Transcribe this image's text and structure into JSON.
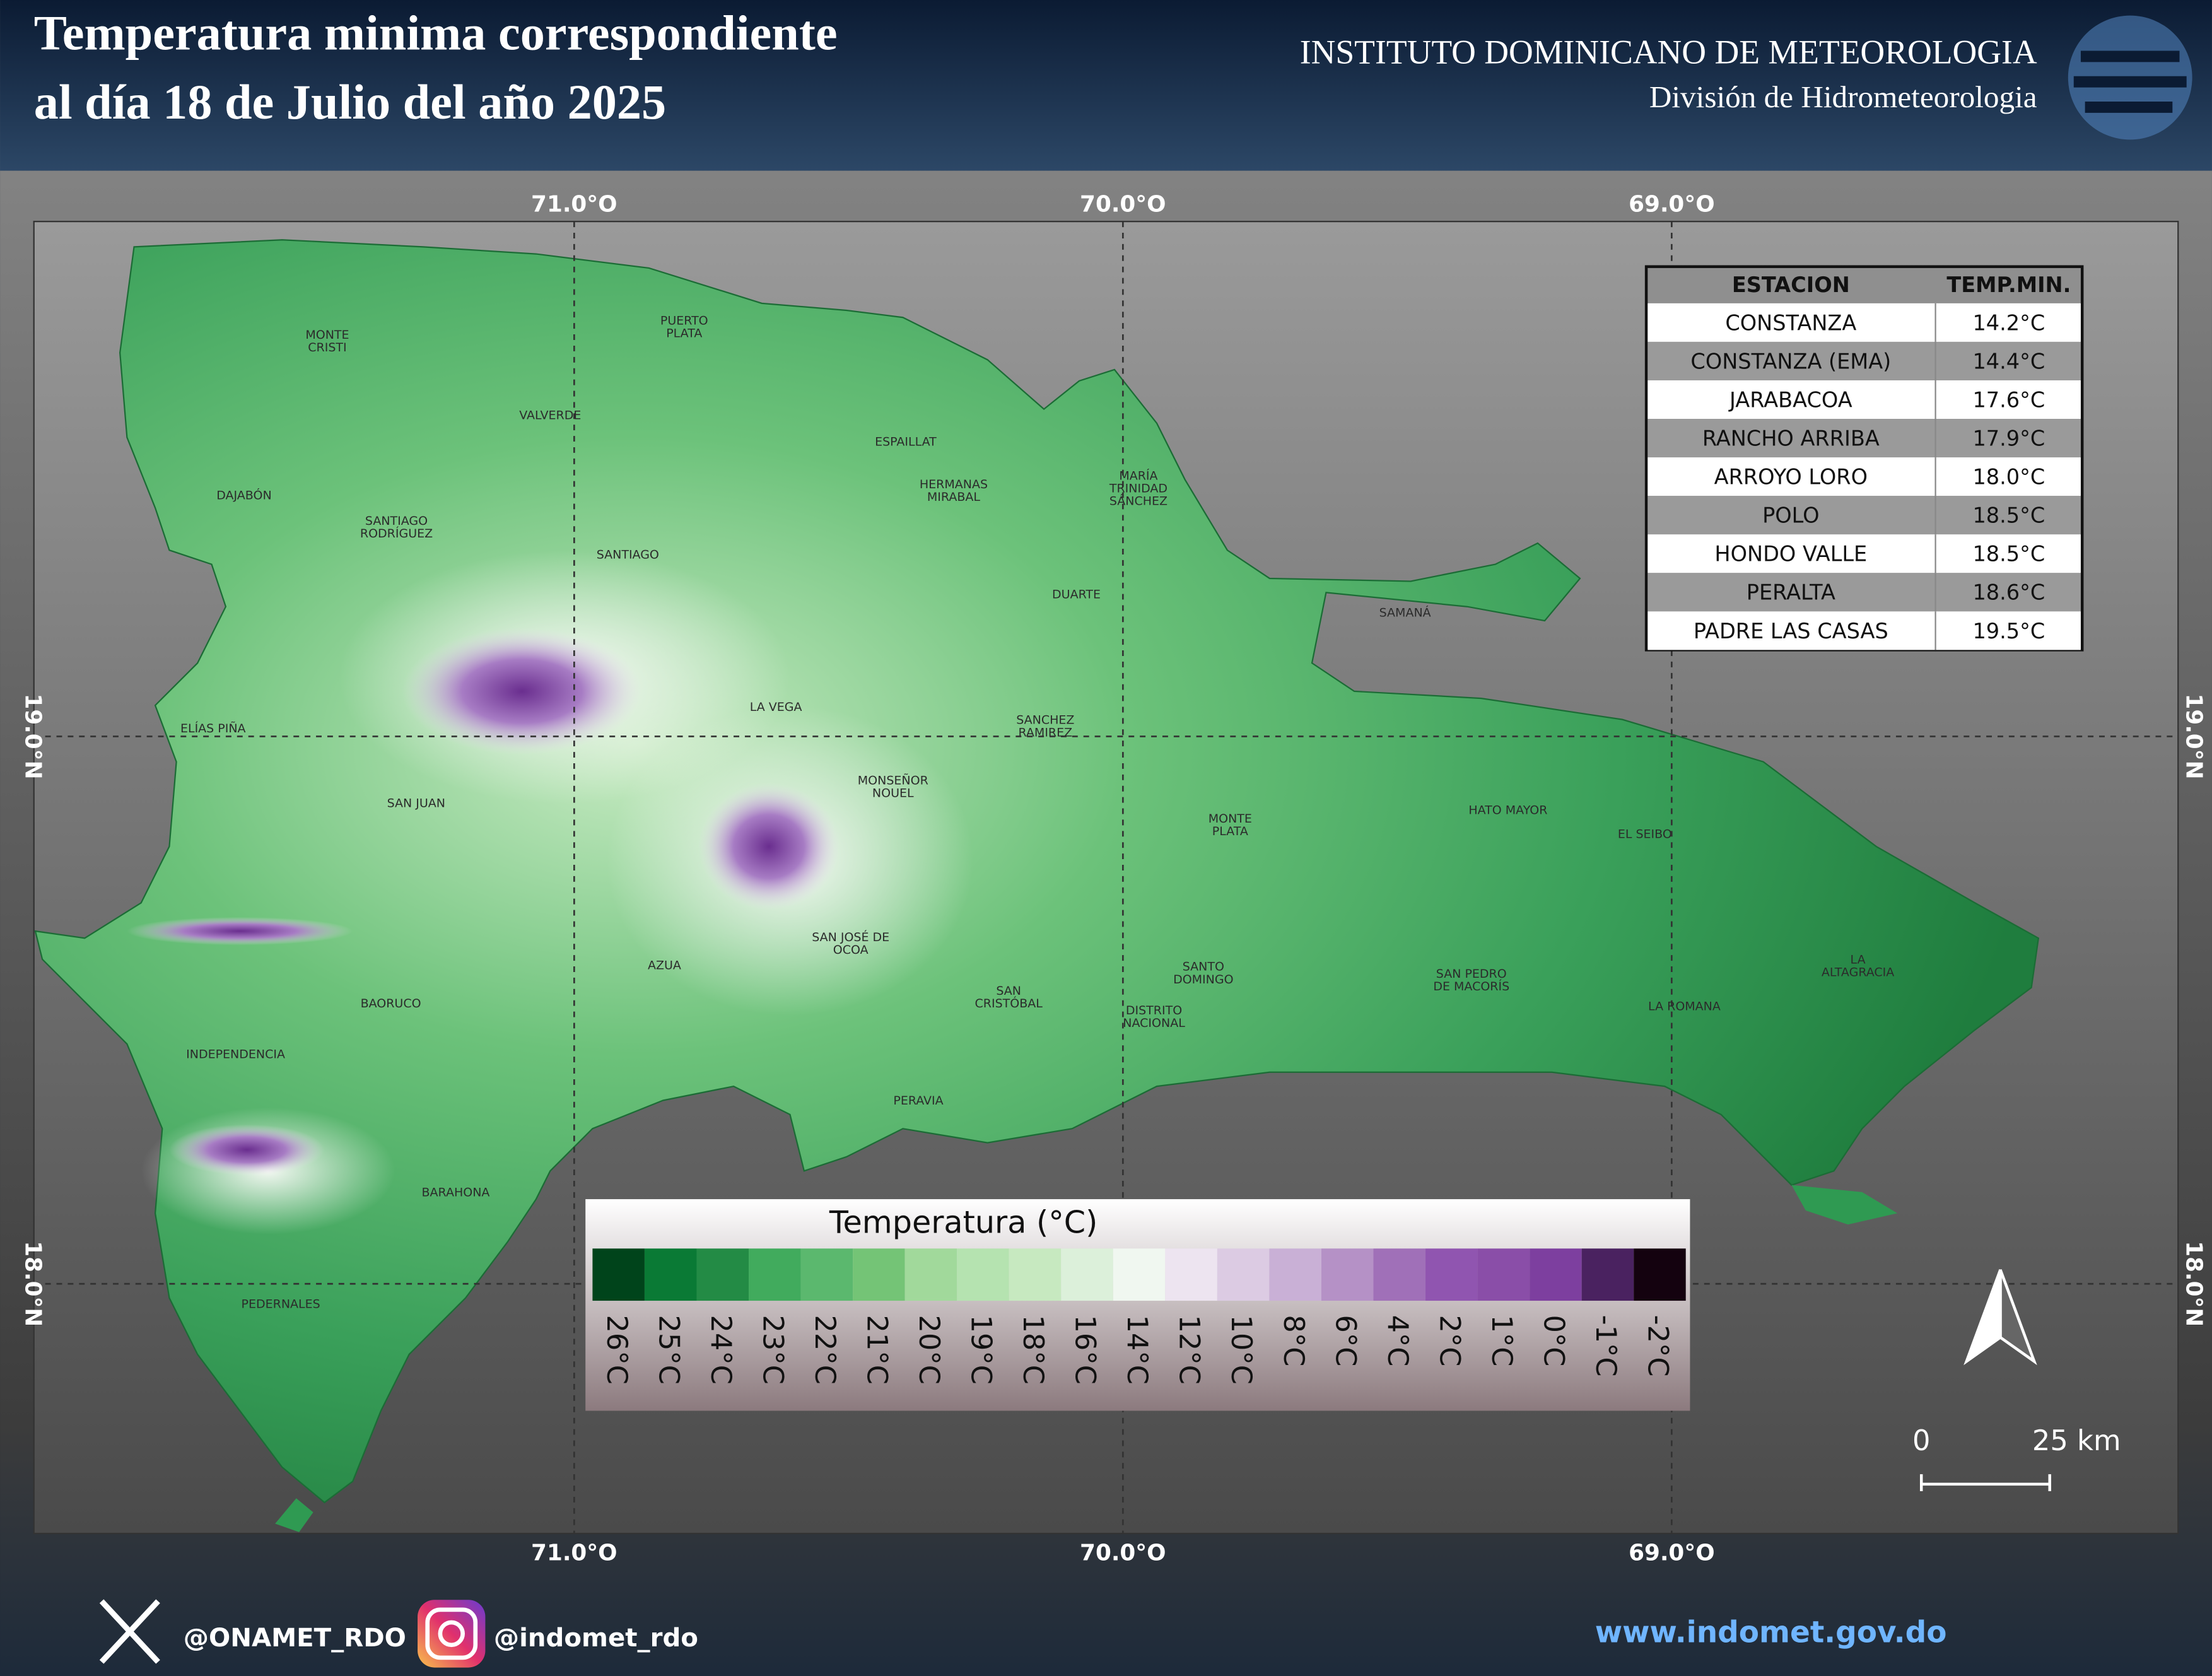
{
  "header": {
    "title_lines": [
      "Temperatura minima correspondiente",
      "al día 18 de Julio del año 2025"
    ],
    "institute": "INSTITUTO DOMINICANO DE METEOROLOGIA",
    "division": "División de Hidrometeorologia"
  },
  "map": {
    "lon_labels": [
      "71.0°O",
      "70.0°O",
      "69.0°O"
    ],
    "lat_labels": [
      "19.0°N",
      "18.0°N"
    ],
    "provinces": [
      {
        "lines": [
          "MONTE",
          "CRISTI"
        ]
      },
      {
        "lines": [
          "PUERTO",
          "PLATA"
        ]
      },
      {
        "lines": [
          "VALVERDE"
        ]
      },
      {
        "lines": [
          "ESPAILLAT"
        ]
      },
      {
        "lines": [
          "HERMANAS",
          "MIRABAL"
        ]
      },
      {
        "lines": [
          "MARÍA",
          "TRINIDAD",
          "SÁNCHEZ"
        ]
      },
      {
        "lines": [
          "DAJABÓN"
        ]
      },
      {
        "lines": [
          "SANTIAGO",
          "RODRÍGUEZ"
        ]
      },
      {
        "lines": [
          "SANTIAGO"
        ]
      },
      {
        "lines": [
          "DUARTE"
        ]
      },
      {
        "lines": [
          "SAMANÁ"
        ]
      },
      {
        "lines": [
          "LA VEGA"
        ]
      },
      {
        "lines": [
          "SANCHEZ",
          "RAMIREZ"
        ]
      },
      {
        "lines": [
          "ELÍAS PIÑA"
        ]
      },
      {
        "lines": [
          "MONSEÑOR",
          "NOUEL"
        ]
      },
      {
        "lines": [
          "SAN JUAN"
        ]
      },
      {
        "lines": [
          "HATO MAYOR"
        ]
      },
      {
        "lines": [
          "MONTE",
          "PLATA"
        ]
      },
      {
        "lines": [
          "EL SEIBO"
        ]
      },
      {
        "lines": [
          "SAN JOSÉ DE",
          "OCOA"
        ]
      },
      {
        "lines": [
          "AZUA"
        ]
      },
      {
        "lines": [
          "SANTO",
          "DOMINGO"
        ]
      },
      {
        "lines": [
          "SAN PEDRO",
          "DE MACORÍS"
        ]
      },
      {
        "lines": [
          "LA",
          "ALTAGRACIA"
        ]
      },
      {
        "lines": [
          "BAORUCO"
        ]
      },
      {
        "lines": [
          "SAN",
          "CRISTÓBAL"
        ]
      },
      {
        "lines": [
          "DISTRITO",
          "NACIONAL"
        ]
      },
      {
        "lines": [
          "LA ROMANA"
        ]
      },
      {
        "lines": [
          "INDEPENDENCIA"
        ]
      },
      {
        "lines": [
          "PERAVIA"
        ]
      },
      {
        "lines": [
          "BARAHONA"
        ]
      },
      {
        "lines": [
          "PEDERNALES"
        ]
      }
    ]
  },
  "station_table": {
    "columns": [
      "ESTACION",
      "TEMP.MIN."
    ],
    "rows": [
      [
        "CONSTANZA",
        "14.2°C"
      ],
      [
        "CONSTANZA (EMA)",
        "14.4°C"
      ],
      [
        "JARABACOA",
        "17.6°C"
      ],
      [
        "RANCHO ARRIBA",
        "17.9°C"
      ],
      [
        "ARROYO LORO",
        "18.0°C"
      ],
      [
        "POLO",
        "18.5°C"
      ],
      [
        "HONDO VALLE",
        "18.5°C"
      ],
      [
        "PERALTA",
        "18.6°C"
      ],
      [
        "PADRE LAS CASAS",
        "19.5°C"
      ]
    ]
  },
  "legend": {
    "title": "Temperatura (°C)",
    "items": [
      {
        "label": "26°C",
        "color": "#00441b"
      },
      {
        "label": "25°C",
        "color": "#0a7a35"
      },
      {
        "label": "24°C",
        "color": "#238b45"
      },
      {
        "label": "23°C",
        "color": "#41ab5d"
      },
      {
        "label": "22°C",
        "color": "#5bb86e"
      },
      {
        "label": "21°C",
        "color": "#74c476"
      },
      {
        "label": "20°C",
        "color": "#a1d99b"
      },
      {
        "label": "19°C",
        "color": "#b5e3b0"
      },
      {
        "label": "18°C",
        "color": "#c7e9c0"
      },
      {
        "label": "16°C",
        "color": "#dcf0da"
      },
      {
        "label": "14°C",
        "color": "#f0f7f0"
      },
      {
        "label": "12°C",
        "color": "#ede4f0"
      },
      {
        "label": "10°C",
        "color": "#dccbe3"
      },
      {
        "label": "8°C",
        "color": "#c9b0d6"
      },
      {
        "label": "6°C",
        "color": "#b591c6"
      },
      {
        "label": "4°C",
        "color": "#a070b8"
      },
      {
        "label": "2°C",
        "color": "#9055b0"
      },
      {
        "label": "1°C",
        "color": "#8a4ea8"
      },
      {
        "label": "0°C",
        "color": "#7d3f9f"
      },
      {
        "label": "-1°C",
        "color": "#4a2260"
      },
      {
        "label": "-2°C",
        "color": "#14020f"
      }
    ]
  },
  "scale_bar": {
    "labels": [
      "0",
      "25 km"
    ]
  },
  "footer": {
    "twitter": "@ONAMET_RDO",
    "instagram": "@indomet_rdo",
    "website": "www.indomet.gov.do"
  }
}
